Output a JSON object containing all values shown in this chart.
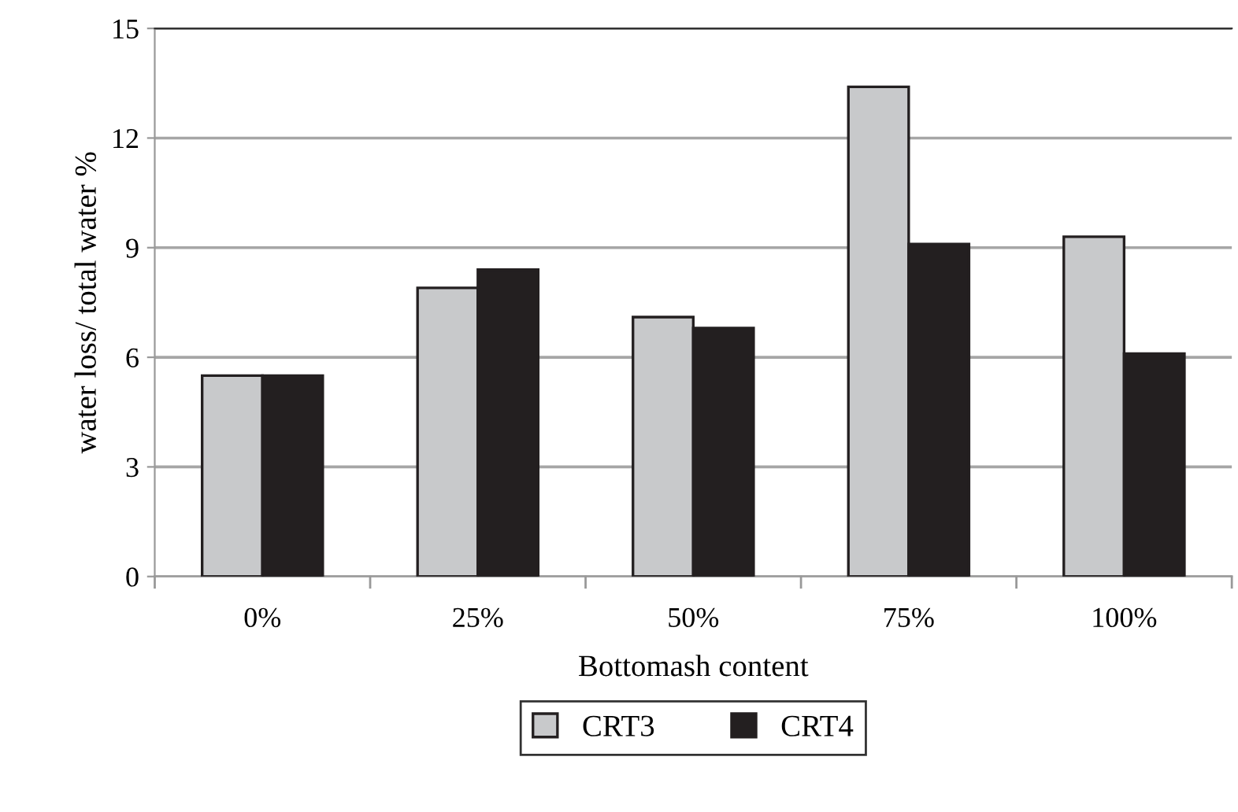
{
  "chart_data": {
    "type": "bar",
    "xlabel": "Bottomash content",
    "ylabel": "water loss/ total water %",
    "categories": [
      "0%",
      "25%",
      "50%",
      "75%",
      "100%"
    ],
    "series": [
      {
        "name": "CRT3",
        "color": "#c8c9cb",
        "values": [
          5.5,
          7.9,
          7.1,
          13.4,
          9.3
        ]
      },
      {
        "name": "CRT4",
        "color": "#231f20",
        "values": [
          5.5,
          8.4,
          6.8,
          9.1,
          6.1
        ]
      }
    ],
    "ylim": [
      0,
      15
    ],
    "yticks": [
      0,
      3,
      6,
      9,
      12,
      15
    ],
    "grid": "y",
    "legend": "bottom"
  }
}
